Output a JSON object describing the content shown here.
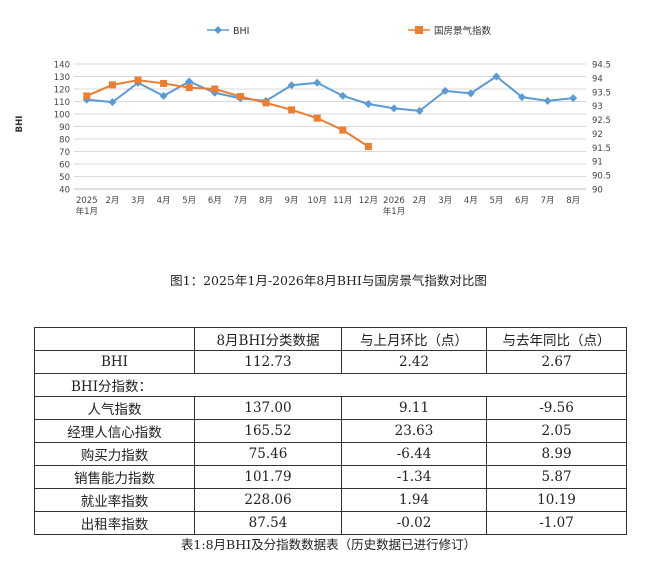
{
  "chart_data": {
    "type": "line",
    "categories": [
      "2025\n年1月",
      "2月",
      "3月",
      "4月",
      "5月",
      "6月",
      "7月",
      "8月",
      "9月",
      "10月",
      "11月",
      "12月",
      "2026\n年1月",
      "2月",
      "3月",
      "4月",
      "5月",
      "6月",
      "7月",
      "8月"
    ],
    "series": [
      {
        "name": "BHI",
        "axis": "left",
        "color": "#5b9bd5",
        "marker": "diamond",
        "values": [
          111.5,
          109.5,
          125,
          114.5,
          126,
          117,
          112.5,
          110.5,
          123,
          125,
          114.5,
          108,
          104.5,
          102.5,
          118.5,
          116.5,
          130,
          113.5,
          110.5,
          112.7
        ]
      },
      {
        "name": "国房景气指数",
        "axis": "right",
        "color": "#ed7d31",
        "marker": "square",
        "values": [
          93.35,
          93.75,
          93.92,
          93.8,
          93.65,
          93.6,
          93.33,
          93.1,
          92.85,
          92.55,
          92.12,
          91.53,
          null,
          null,
          null,
          null,
          null,
          null,
          null,
          null
        ]
      }
    ],
    "y_left": {
      "min": 40,
      "max": 140,
      "step": 10,
      "ticks": [
        "40",
        "50",
        "60",
        "70",
        "80",
        "90",
        "100",
        "110",
        "120",
        "130",
        "140"
      ]
    },
    "y_right": {
      "min": 90,
      "max": 94.5,
      "step": 0.5,
      "ticks": [
        "90",
        "90.5",
        "91",
        "91.5",
        "92",
        "92.5",
        "93",
        "93.5",
        "94",
        "94.5"
      ]
    },
    "ylabel": "BHI",
    "grid": true,
    "legend": "top-center"
  },
  "figure_caption": "图1：2025年1月-2026年8月BHI与国房景气指数对比图",
  "table": {
    "headers": [
      "",
      "8月BHI分类数据",
      "与上月环比（点）",
      "与去年同比（点）"
    ],
    "rows": [
      {
        "name": "BHI",
        "value": "112.73",
        "mom": "2.42",
        "yoy": "2.67"
      },
      {
        "section": "BHI分指数："
      },
      {
        "name": "人气指数",
        "value": "137.00",
        "mom": "9.11",
        "yoy": "-9.56"
      },
      {
        "name": "经理人信心指数",
        "value": "165.52",
        "mom": "23.63",
        "yoy": "2.05"
      },
      {
        "name": "购买力指数",
        "value": "75.46",
        "mom": "-6.44",
        "yoy": "8.99"
      },
      {
        "name": "销售能力指数",
        "value": "101.79",
        "mom": "-1.34",
        "yoy": "5.87"
      },
      {
        "name": "就业率指数",
        "value": "228.06",
        "mom": "1.94",
        "yoy": "10.19"
      },
      {
        "name": "出租率指数",
        "value": "87.54",
        "mom": "-0.02",
        "yoy": "-1.07"
      }
    ]
  },
  "table_caption": "表1:8月BHI及分指数数据表（历史数据已进行修订）"
}
